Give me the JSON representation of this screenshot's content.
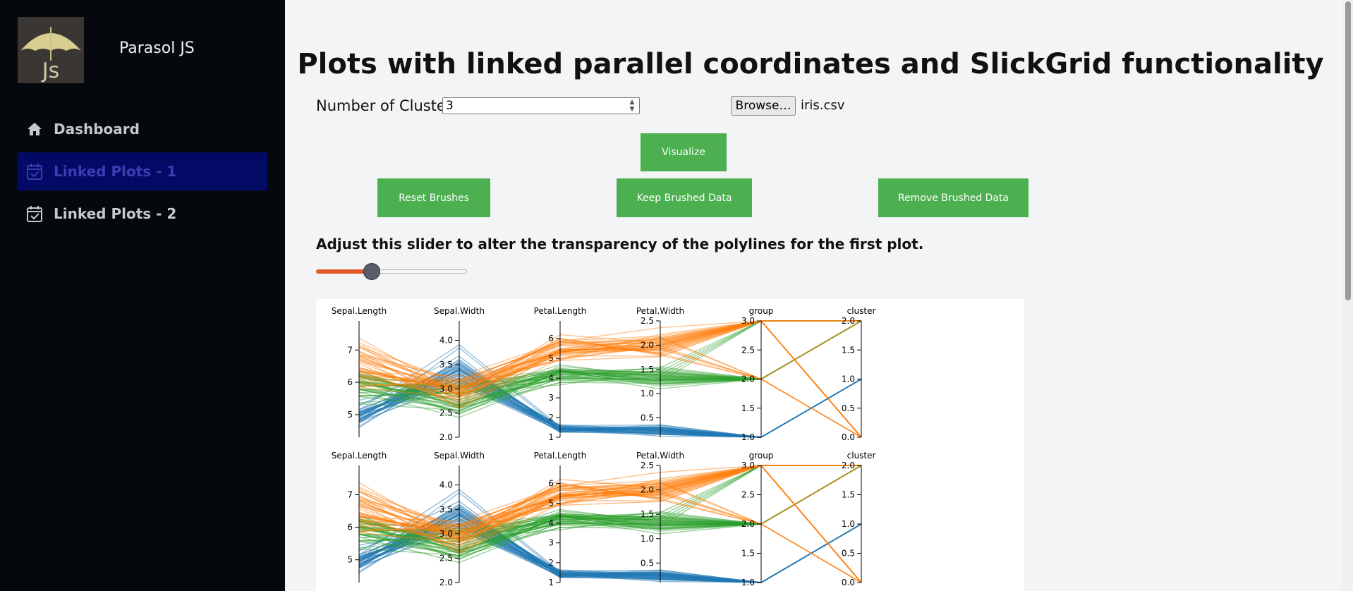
{
  "sidebar": {
    "brand": "Parasol JS",
    "items": [
      {
        "label": "Dashboard",
        "icon": "home-icon",
        "active": false
      },
      {
        "label": "Linked Plots - 1",
        "icon": "calendar-check-icon",
        "active": true
      },
      {
        "label": "Linked Plots - 2",
        "icon": "calendar-check-icon",
        "active": false
      }
    ]
  },
  "main": {
    "title": "Plots with linked parallel coordinates and SlickGrid functionality",
    "clusters_label": "Number of Clusters:",
    "clusters_value": "3",
    "browse_label": "Browse…",
    "file_name": "iris.csv",
    "visualize_label": "Visualize",
    "reset_label": "Reset Brushes",
    "keep_label": "Keep Brushed Data",
    "remove_label": "Remove Brushed Data",
    "slider_caption": "Adjust this slider to alter the transparency of the polylines for the first plot.",
    "slider_value": 0.37
  },
  "colors": {
    "accent": "#4caf50",
    "active_nav": "#030a66",
    "slider_fill": "#e3592a",
    "cluster_blue": "#1f77b4",
    "cluster_orange": "#ff7f0e",
    "cluster_green": "#2ca02c"
  },
  "chart_data": {
    "type": "parallel-coordinates",
    "plots": 2,
    "axes": [
      {
        "name": "Sepal.Length",
        "range": [
          4.3,
          7.9
        ],
        "ticks": [
          "5",
          "6",
          "7"
        ]
      },
      {
        "name": "Sepal.Width",
        "range": [
          2.0,
          4.4
        ],
        "ticks": [
          "2.0",
          "2.5",
          "3.0",
          "3.5",
          "4.0"
        ]
      },
      {
        "name": "Petal.Length",
        "range": [
          1,
          6.9
        ],
        "ticks": [
          "1",
          "2",
          "3",
          "4",
          "5",
          "6"
        ]
      },
      {
        "name": "Petal.Width",
        "range": [
          0.1,
          2.5
        ],
        "ticks": [
          "0.5",
          "1.0",
          "1.5",
          "2.0",
          "2.5"
        ]
      },
      {
        "name": "group",
        "range": [
          1.0,
          3.0
        ],
        "ticks": [
          "1.0",
          "1.5",
          "2.0",
          "2.5",
          "3.0"
        ]
      },
      {
        "name": "cluster",
        "range": [
          0.0,
          2.0
        ],
        "ticks": [
          "0.0",
          "0.5",
          "1.0",
          "1.5",
          "2.0"
        ]
      }
    ]
  }
}
